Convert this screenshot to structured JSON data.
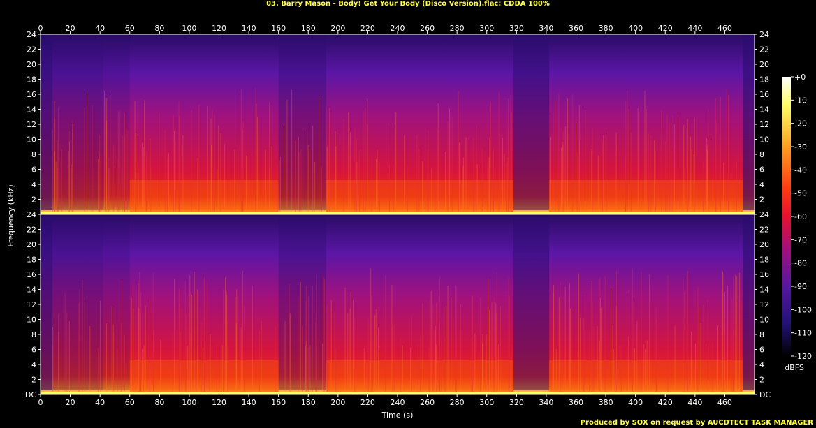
{
  "title": "03. Barry Mason - Body! Get Your Body (Disco Version).flac: CDDA 100%",
  "credit": "Produced by SOX on request by AUCDTECT TASK MANAGER",
  "colors": {
    "title": "#ffff40",
    "credit": "#ffff40",
    "axis": "#ffffff",
    "background": "#000000"
  },
  "chart_data": {
    "type": "heatmap",
    "channels": 2,
    "xlabel": "Time (s)",
    "ylabel": "Frequency (kHz)",
    "xlim": [
      0,
      480
    ],
    "ylim": [
      0,
      24
    ],
    "x_ticks": [
      "0",
      "20",
      "40",
      "60",
      "80",
      "100",
      "120",
      "140",
      "160",
      "180",
      "200",
      "220",
      "240",
      "260",
      "280",
      "300",
      "320",
      "340",
      "360",
      "380",
      "400",
      "420",
      "440",
      "460"
    ],
    "y_ticks": [
      "DC",
      "2",
      "4",
      "6",
      "8",
      "10",
      "12",
      "14",
      "16",
      "18",
      "20",
      "22",
      "24"
    ],
    "colorbar": {
      "label": "dBFS",
      "range": [
        -120,
        0
      ],
      "ticks": [
        "+0",
        "-10",
        "-20",
        "-30",
        "-40",
        "-50",
        "-60",
        "-70",
        "-80",
        "-90",
        "-100",
        "-110",
        "-120"
      ]
    },
    "sections": [
      {
        "start": 0,
        "end": 8,
        "level": "fade-in"
      },
      {
        "start": 8,
        "end": 42,
        "level": "medium"
      },
      {
        "start": 42,
        "end": 60,
        "level": "medium-high"
      },
      {
        "start": 60,
        "end": 160,
        "level": "high"
      },
      {
        "start": 160,
        "end": 192,
        "level": "medium"
      },
      {
        "start": 192,
        "end": 318,
        "level": "high"
      },
      {
        "start": 318,
        "end": 342,
        "level": "low"
      },
      {
        "start": 342,
        "end": 472,
        "level": "high"
      },
      {
        "start": 472,
        "end": 480,
        "level": "fade-out"
      }
    ]
  }
}
